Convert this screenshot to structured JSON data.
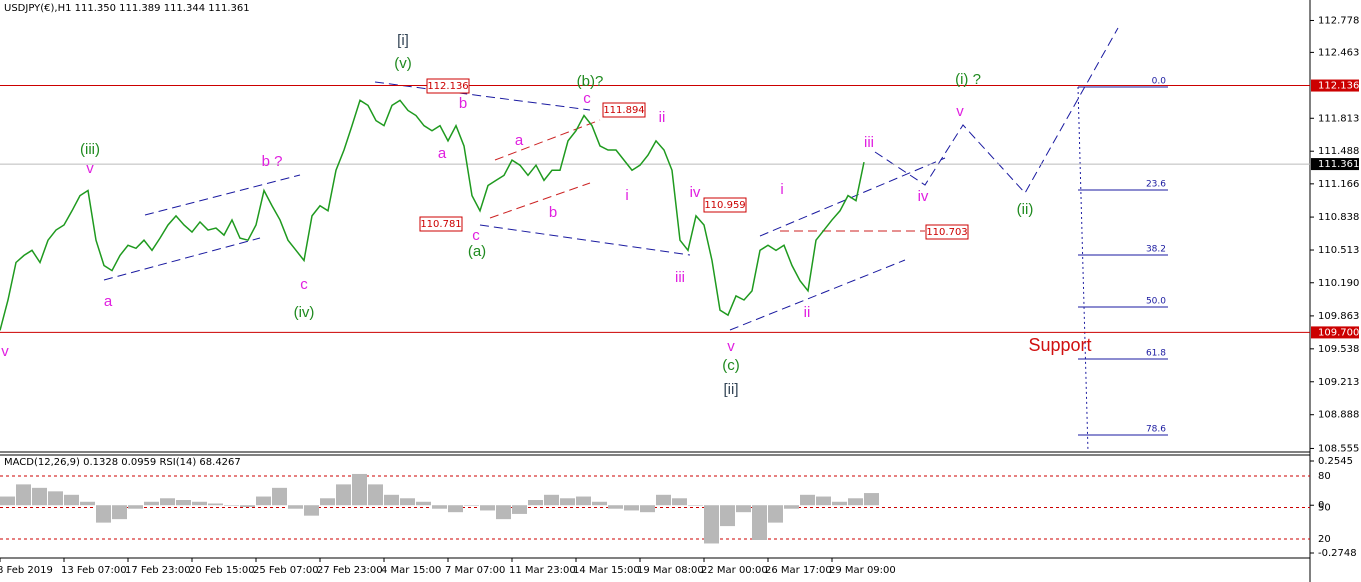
{
  "header": "USDJPY(€),H1  111.350 111.389 111.344 111.361",
  "chart_data": [
    {
      "type": "line",
      "categories": [
        "8 Feb 2019",
        null,
        null,
        null,
        null,
        null,
        null,
        null,
        "13 Feb 07:00",
        null,
        null,
        null,
        null,
        null,
        null,
        null,
        "17 Feb 23:00",
        null,
        null,
        null,
        null,
        null,
        null,
        null,
        "20 Feb 15:00",
        null,
        null,
        null,
        null,
        null,
        null,
        null,
        "25 Feb 07:00",
        null,
        null,
        null,
        null,
        null,
        null,
        null,
        "27 Feb 23:00",
        null,
        null,
        null,
        null,
        null,
        null,
        null,
        "4 Mar 15:00",
        null,
        null,
        null,
        null,
        null,
        null,
        null,
        "7 Mar 07:00",
        null,
        null,
        null,
        null,
        null,
        null,
        null,
        "11 Mar 23:00",
        null,
        null,
        null,
        null,
        null,
        null,
        null,
        "14 Mar 15:00",
        null,
        null,
        null,
        null,
        null,
        null,
        null,
        "19 Mar 08:00",
        null,
        null,
        null,
        null,
        null,
        null,
        null,
        "22 Mar 00:00",
        null,
        null,
        null,
        null,
        null,
        null,
        null,
        "26 Mar 17:00",
        null,
        null,
        null,
        null,
        null,
        null,
        null,
        "29 Mar 09:00",
        null,
        null,
        null,
        null
      ],
      "values": [
        109.72,
        110.02,
        110.39,
        110.46,
        110.51,
        110.39,
        110.61,
        110.71,
        110.76,
        110.9,
        111.05,
        111.1,
        110.61,
        110.36,
        110.31,
        110.46,
        110.56,
        110.53,
        110.61,
        110.51,
        110.63,
        110.76,
        110.85,
        110.76,
        110.69,
        110.79,
        110.71,
        110.73,
        110.66,
        110.81,
        110.63,
        110.61,
        110.76,
        111.1,
        110.95,
        110.81,
        110.61,
        110.51,
        110.41,
        110.85,
        110.95,
        110.9,
        111.3,
        111.5,
        111.74,
        111.99,
        111.94,
        111.79,
        111.74,
        111.94,
        111.99,
        111.89,
        111.84,
        111.74,
        111.69,
        111.74,
        111.59,
        111.74,
        111.54,
        111.05,
        110.9,
        111.15,
        111.2,
        111.25,
        111.4,
        111.35,
        111.25,
        111.35,
        111.2,
        111.3,
        111.3,
        111.59,
        111.69,
        111.84,
        111.74,
        111.54,
        111.5,
        111.5,
        111.4,
        111.3,
        111.35,
        111.45,
        111.59,
        111.5,
        111.3,
        110.61,
        110.51,
        110.85,
        110.76,
        110.41,
        109.92,
        109.87,
        110.06,
        110.02,
        110.11,
        110.51,
        110.56,
        110.51,
        110.56,
        110.36,
        110.21,
        110.11,
        110.61,
        110.71,
        110.81,
        110.9,
        111.05,
        111.0,
        111.38
      ],
      "color": "#1f9a1f",
      "ylim": [
        108.52,
        112.98
      ],
      "yticks": [
        112.778,
        112.463,
        111.813,
        111.488,
        111.166,
        110.838,
        110.513,
        {
          "value": 110.19,
          "label": "110.190"
        },
        109.863,
        109.538,
        109.213,
        108.888,
        108.555
      ],
      "levels": [
        {
          "price": 112.136,
          "color": "#cc0000"
        },
        {
          "price": 111.361,
          "color": "#000000"
        },
        {
          "price": {
            "value": 109.7,
            "label": "109.700"
          },
          "color": "#cc0000"
        }
      ],
      "annotations": [
        "v",
        "(iii)",
        "v",
        "a",
        "b ?",
        "c",
        "(iv)",
        "[i]",
        "(v)",
        "b",
        "a",
        "a",
        "b",
        "c",
        "(a)",
        "(b)?",
        "c",
        "ii",
        "i",
        "iv",
        "iii",
        "v",
        "(c)",
        "[ii]",
        "i",
        "ii",
        "iii",
        "iv",
        "v",
        "(i) ?",
        "(ii)",
        "Support"
      ],
      "price_tags": [
        "112.136",
        "111.894",
        "110.781",
        "110.959",
        "110.703"
      ],
      "fib_labels": [
        "0.0",
        "23.6",
        "38.2",
        "50.0",
        "61.8",
        "78.6"
      ]
    },
    {
      "type": "bar",
      "title": "MACD(12,26,9) 0.1328 0.0959 RSI(14) 68.4267",
      "values": [
        0.05,
        0.12,
        0.1,
        0.08,
        0.06,
        0.02,
        -0.1,
        -0.08,
        -0.02,
        0.02,
        0.04,
        0.03,
        0.02,
        0.01,
        0.0,
        -0.01,
        0.05,
        0.1,
        -0.02,
        -0.06,
        0.04,
        0.12,
        0.18,
        0.12,
        0.06,
        0.04,
        0.02,
        -0.02,
        -0.04,
        0.0,
        -0.03,
        -0.08,
        -0.05,
        0.03,
        0.06,
        0.04,
        0.05,
        0.02,
        -0.02,
        -0.03,
        -0.04,
        0.06,
        0.04,
        0.0,
        -0.22,
        -0.12,
        -0.04,
        -0.2,
        -0.1,
        -0.02,
        0.06,
        0.05,
        0.02,
        0.04,
        0.07
      ],
      "color": "#b8b8b8",
      "ylim": [
        -0.2748,
        0.2545
      ],
      "yticks": [
        0.2545,
        0,
        -0.2748
      ],
      "rsi_lim": [
        0,
        100
      ],
      "rsi_levels": [
        80,
        50,
        20
      ]
    }
  ]
}
